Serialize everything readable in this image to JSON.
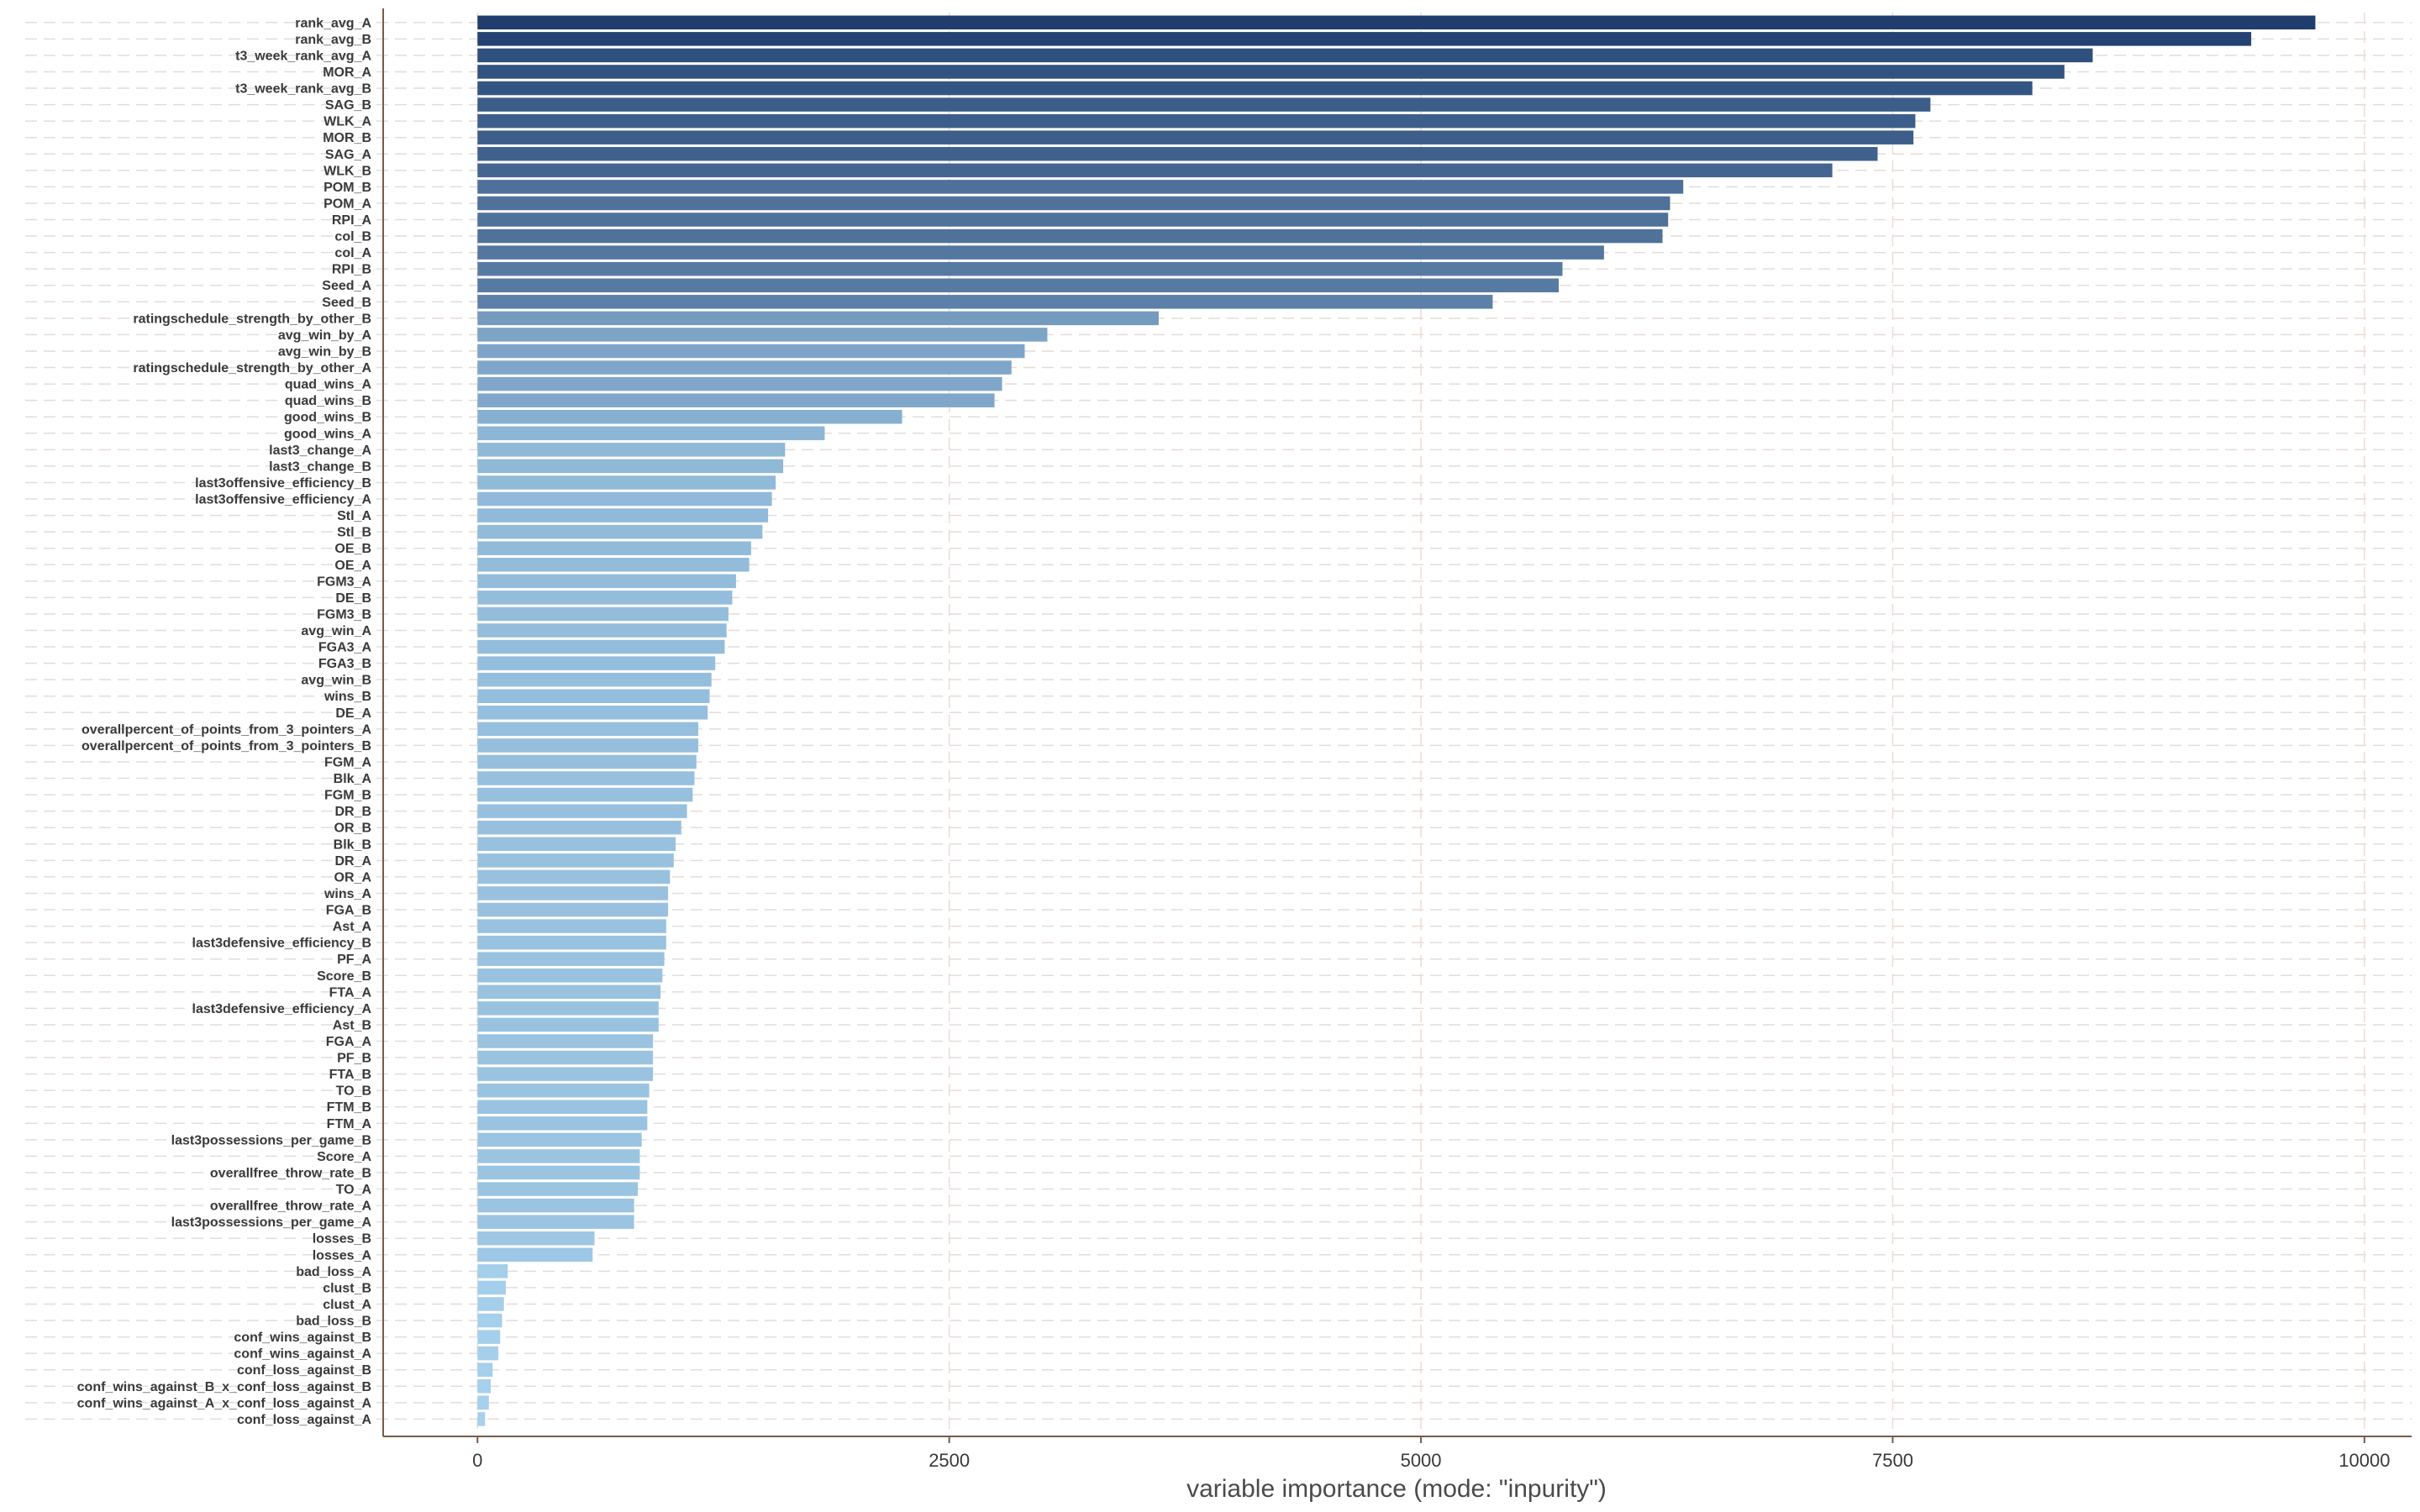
{
  "chart_data": {
    "type": "bar",
    "orientation": "horizontal",
    "xlabel": "variable importance (mode: \"inpurity\")",
    "ylabel": "",
    "xlim": [
      -500,
      10250
    ],
    "xticks": [
      0,
      2500,
      5000,
      7500,
      10000
    ],
    "xtick_labels": [
      "0",
      "2500",
      "5000",
      "7500",
      "10000"
    ],
    "grid": true,
    "color_low": "#a6d0ec",
    "color_high": "#1f3e6e",
    "categories": [
      "rank_avg_A",
      "rank_avg_B",
      "t3_week_rank_avg_A",
      "MOR_A",
      "t3_week_rank_avg_B",
      "SAG_B",
      "WLK_A",
      "MOR_B",
      "SAG_A",
      "WLK_B",
      "POM_B",
      "POM_A",
      "RPI_A",
      "col_B",
      "col_A",
      "RPI_B",
      "Seed_A",
      "Seed_B",
      "ratingschedule_strength_by_other_B",
      "avg_win_by_A",
      "avg_win_by_B",
      "ratingschedule_strength_by_other_A",
      "quad_wins_A",
      "quad_wins_B",
      "good_wins_B",
      "good_wins_A",
      "last3_change_A",
      "last3_change_B",
      "last3offensive_efficiency_B",
      "last3offensive_efficiency_A",
      "Stl_A",
      "Stl_B",
      "OE_B",
      "OE_A",
      "FGM3_A",
      "DE_B",
      "FGM3_B",
      "avg_win_A",
      "FGA3_A",
      "FGA3_B",
      "avg_win_B",
      "wins_B",
      "DE_A",
      "overallpercent_of_points_from_3_pointers_A",
      "overallpercent_of_points_from_3_pointers_B",
      "FGM_A",
      "Blk_A",
      "FGM_B",
      "DR_B",
      "OR_B",
      "Blk_B",
      "DR_A",
      "OR_A",
      "wins_A",
      "FGA_B",
      "Ast_A",
      "last3defensive_efficiency_B",
      "PF_A",
      "Score_B",
      "FTA_A",
      "last3defensive_efficiency_A",
      "Ast_B",
      "FGA_A",
      "PF_B",
      "FTA_B",
      "TO_B",
      "FTM_B",
      "FTM_A",
      "last3possessions_per_game_B",
      "Score_A",
      "overallfree_throw_rate_B",
      "TO_A",
      "overallfree_throw_rate_A",
      "last3possessions_per_game_A",
      "losses_B",
      "losses_A",
      "bad_loss_A",
      "clust_B",
      "clust_A",
      "bad_loss_B",
      "conf_wins_against_B",
      "conf_wins_against_A",
      "conf_loss_against_B",
      "conf_wins_against_B_x_conf_loss_against_B",
      "conf_wins_against_A_x_conf_loss_against_A",
      "conf_loss_against_A"
    ],
    "values": [
      9740,
      9400,
      8560,
      8410,
      8240,
      7700,
      7620,
      7610,
      7420,
      7180,
      6390,
      6320,
      6310,
      6280,
      5970,
      5750,
      5730,
      5380,
      3610,
      3020,
      2900,
      2830,
      2780,
      2740,
      2250,
      1840,
      1630,
      1620,
      1580,
      1560,
      1540,
      1510,
      1450,
      1440,
      1370,
      1350,
      1330,
      1320,
      1310,
      1260,
      1240,
      1230,
      1220,
      1170,
      1170,
      1160,
      1150,
      1140,
      1110,
      1080,
      1050,
      1040,
      1020,
      1010,
      1010,
      1000,
      1000,
      990,
      980,
      970,
      960,
      960,
      930,
      930,
      930,
      910,
      900,
      900,
      870,
      860,
      860,
      850,
      830,
      830,
      620,
      610,
      160,
      150,
      140,
      130,
      120,
      110,
      80,
      70,
      60,
      40
    ]
  }
}
